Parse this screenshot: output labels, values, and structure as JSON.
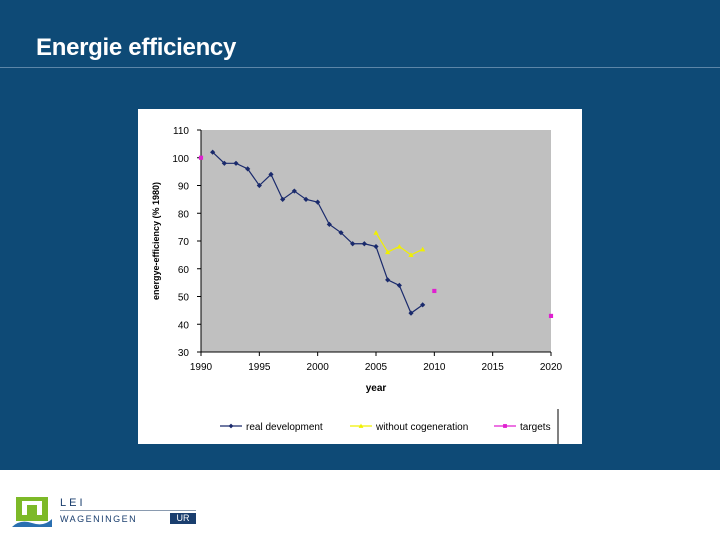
{
  "slide": {
    "title": "Energie efficiency"
  },
  "chart_data": {
    "type": "line",
    "xlabel": "year",
    "ylabel": "energye-efficiency (% 1980)",
    "xlim": [
      1990,
      2020
    ],
    "ylim": [
      30,
      110
    ],
    "x_ticks": [
      1990,
      1995,
      2000,
      2005,
      2010,
      2015,
      2020
    ],
    "y_ticks": [
      30,
      40,
      50,
      60,
      70,
      80,
      90,
      100,
      110
    ],
    "grid": false,
    "plot_background": "#c0c0c0",
    "legend_position": "bottom",
    "series": [
      {
        "name": "real development",
        "color": "#1a2a6c",
        "marker": "diamond",
        "line": true,
        "x": [
          1991,
          1992,
          1993,
          1994,
          1995,
          1996,
          1997,
          1998,
          1999,
          2000,
          2001,
          2002,
          2003,
          2004,
          2005,
          2006,
          2007,
          2008,
          2009
        ],
        "y": [
          102,
          98,
          98,
          96,
          90,
          94,
          85,
          88,
          85,
          84,
          76,
          73,
          69,
          69,
          68,
          56,
          54,
          44,
          47
        ]
      },
      {
        "name": "without cogeneration",
        "color": "#f0f000",
        "marker": "triangle",
        "line": true,
        "x": [
          2005,
          2006,
          2007,
          2008,
          2009
        ],
        "y": [
          73,
          66,
          68,
          65,
          67
        ]
      },
      {
        "name": "targets",
        "color": "#e020d0",
        "marker": "square",
        "line": false,
        "x": [
          1990,
          2010,
          2020
        ],
        "y": [
          100,
          52,
          43
        ]
      }
    ]
  },
  "footer": {
    "logo_lei": "LEI",
    "logo_wageningen": "WAGENINGEN",
    "logo_ur": "UR"
  }
}
